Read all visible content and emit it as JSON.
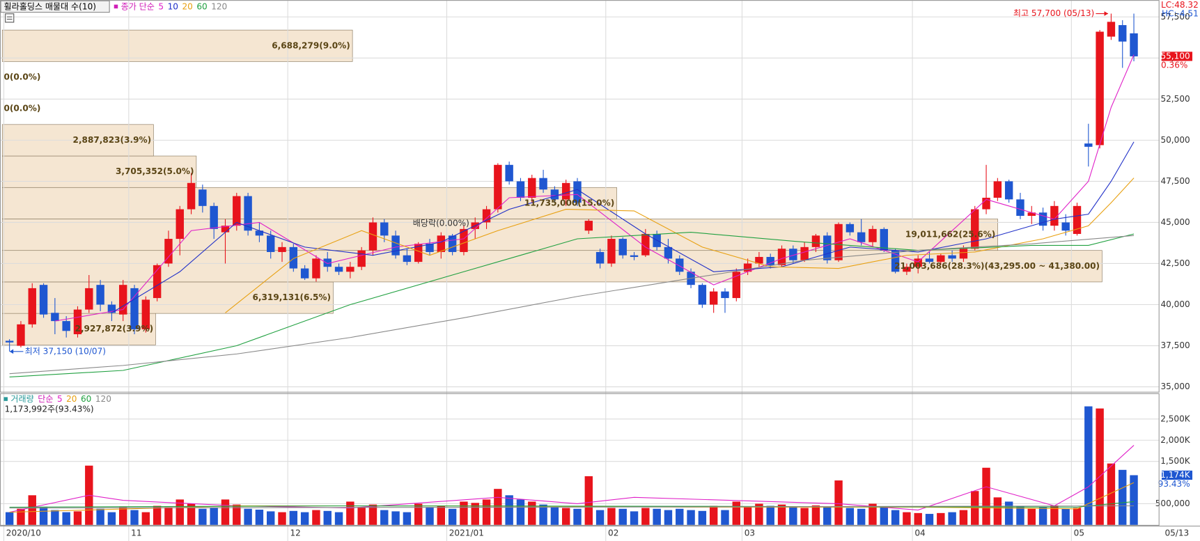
{
  "chart_data": [
    {
      "type": "candlestick",
      "title": "휠라홀딩스 매물대 수(10)",
      "ma_label": "종가 단순",
      "lc_label": "LC:48.32",
      "hc_label": "HC:-4.51",
      "high_label": "최고 57,700 (05/13)",
      "low_label": "최저 37,150 (10/07)",
      "dividend_label": "배당락(0.00%)",
      "last_price_label": "55,100",
      "change_label": "0.36%",
      "x_end_label": "05/13",
      "up_color": "#e8141c",
      "down_color": "#1f57d1",
      "categories": [
        "2020/10",
        null,
        null,
        null,
        null,
        null,
        null,
        null,
        null,
        null,
        null,
        "11",
        null,
        null,
        null,
        null,
        null,
        null,
        null,
        null,
        null,
        null,
        null,
        null,
        null,
        "12",
        null,
        null,
        null,
        null,
        null,
        null,
        null,
        null,
        null,
        null,
        null,
        null,
        null,
        "2021/01",
        null,
        null,
        null,
        null,
        null,
        null,
        null,
        null,
        null,
        null,
        null,
        null,
        null,
        "02",
        null,
        null,
        null,
        null,
        null,
        null,
        null,
        null,
        null,
        null,
        null,
        "03",
        null,
        null,
        null,
        null,
        null,
        null,
        null,
        null,
        null,
        null,
        null,
        null,
        null,
        null,
        "04",
        null,
        null,
        null,
        null,
        null,
        null,
        null,
        null,
        null,
        null,
        null,
        null,
        null,
        "05",
        null,
        null,
        null,
        null,
        null
      ],
      "open": [
        37800,
        37500,
        38800,
        41200,
        39500,
        39000,
        38200,
        39700,
        41200,
        40000,
        39400,
        41000,
        38500,
        40400,
        42500,
        44000,
        45800,
        47000,
        46000,
        44400,
        44800,
        46600,
        44500,
        44200,
        43200,
        43500,
        42200,
        41600,
        42800,
        42300,
        42000,
        42300,
        43300,
        45000,
        44200,
        43000,
        42600,
        43700,
        43200,
        44200,
        43200,
        44600,
        45000,
        45800,
        48500,
        47500,
        46500,
        47700,
        47000,
        46400,
        47500,
        44500,
        43200,
        42500,
        44000,
        43000,
        43000,
        44300,
        43500,
        42800,
        42000,
        41200,
        40000,
        40800,
        40400,
        42000,
        42500,
        42900,
        42400,
        43400,
        42700,
        43500,
        44200,
        42700,
        44900,
        44400,
        43800,
        44600,
        43300,
        42000,
        42300,
        42800,
        42600,
        43000,
        42800,
        43400,
        45800,
        46500,
        47500,
        46400,
        45400,
        45600,
        44800,
        45000,
        44300,
        49800,
        49700,
        56300,
        57000,
        56500
      ],
      "high": [
        37900,
        39000,
        41300,
        41300,
        40400,
        39300,
        39900,
        41800,
        41500,
        40200,
        41500,
        41200,
        40500,
        42500,
        44500,
        46000,
        48000,
        47300,
        46200,
        45200,
        46800,
        46800,
        45000,
        44500,
        43800,
        43700,
        42400,
        43000,
        43200,
        42500,
        42600,
        43500,
        45300,
        45200,
        44500,
        43400,
        43800,
        44000,
        44400,
        44300,
        44800,
        45300,
        46000,
        48600,
        48700,
        47700,
        47900,
        48200,
        47200,
        47600,
        47700,
        45200,
        43400,
        44200,
        44100,
        43200,
        44600,
        44500,
        44000,
        43000,
        42200,
        41300,
        41000,
        41000,
        42200,
        42800,
        43200,
        43100,
        43600,
        43600,
        43800,
        44300,
        44400,
        45000,
        45000,
        45200,
        44800,
        44700,
        43400,
        42500,
        43000,
        43200,
        43100,
        43300,
        43600,
        46000,
        48500,
        47700,
        47600,
        46800,
        46000,
        45900,
        46300,
        45500,
        46200,
        51000,
        56700,
        57700,
        57300,
        57700
      ],
      "low": [
        37150,
        37400,
        38600,
        39200,
        38200,
        38000,
        38000,
        39500,
        39600,
        39000,
        39000,
        38200,
        38300,
        40200,
        42300,
        43000,
        45500,
        45600,
        44000,
        42500,
        44500,
        44200,
        43800,
        42800,
        42600,
        42000,
        41500,
        41400,
        42000,
        41800,
        41600,
        42100,
        43000,
        43800,
        42800,
        42400,
        42500,
        43000,
        42800,
        43000,
        43000,
        44000,
        44600,
        45600,
        47300,
        46300,
        46200,
        46800,
        46200,
        46000,
        46000,
        44300,
        42200,
        42300,
        42800,
        42700,
        42900,
        43300,
        42500,
        41800,
        41000,
        39800,
        39500,
        39500,
        40200,
        41800,
        42300,
        42200,
        42300,
        42500,
        42600,
        43200,
        42500,
        42600,
        44200,
        43600,
        43500,
        43200,
        41900,
        41800,
        41900,
        42500,
        42400,
        42600,
        42600,
        43300,
        45500,
        46300,
        46200,
        45200,
        44900,
        44500,
        44500,
        44200,
        44200,
        48400,
        49500,
        56100,
        54400,
        54800
      ],
      "close": [
        37700,
        38800,
        41000,
        39400,
        39000,
        38400,
        39700,
        41000,
        40000,
        39500,
        41200,
        38500,
        40300,
        42400,
        44000,
        45800,
        47400,
        46000,
        44600,
        44800,
        46600,
        44500,
        44200,
        43200,
        43500,
        42200,
        41600,
        42800,
        42300,
        42000,
        42300,
        43300,
        45000,
        44200,
        43000,
        42600,
        43700,
        43200,
        44200,
        43200,
        44600,
        45000,
        45800,
        48500,
        47500,
        46500,
        47700,
        47000,
        46400,
        47400,
        46200,
        45100,
        42500,
        44000,
        43000,
        42900,
        44300,
        43500,
        42800,
        42000,
        41200,
        40000,
        40800,
        40400,
        42000,
        42500,
        42900,
        42400,
        43400,
        42700,
        43500,
        44200,
        42700,
        44900,
        44400,
        43800,
        44600,
        43300,
        42000,
        42300,
        42800,
        42600,
        43000,
        42800,
        43400,
        45800,
        46500,
        47500,
        46400,
        45400,
        45600,
        44800,
        46000,
        44500,
        46000,
        49600,
        56600,
        57200,
        56000,
        55100
      ],
      "ylim": [
        34700,
        58525
      ],
      "yticks": [
        {
          "value": 35000,
          "label": "35,000"
        },
        {
          "value": 37500,
          "label": "37,500"
        },
        {
          "value": 40000,
          "label": "40,000"
        },
        {
          "value": 42500,
          "label": "42,500"
        },
        {
          "value": 45000,
          "label": "45,000"
        },
        {
          "value": 47500,
          "label": "47,500"
        },
        {
          "value": 50000,
          "label": "50,000"
        },
        {
          "value": 52500,
          "label": "52,500"
        },
        {
          "value": 55000,
          "label": "55,000"
        },
        {
          "value": 57500,
          "label": "57,500"
        }
      ],
      "grid": true,
      "series": [
        {
          "name": "5",
          "color": "#e020c8",
          "x": [
            4,
            10,
            16,
            22,
            28,
            34,
            40,
            44,
            50,
            56,
            62,
            68,
            74,
            80,
            86,
            92,
            95,
            97,
            99
          ],
          "values": [
            39000,
            39700,
            44500,
            45000,
            42500,
            43500,
            44000,
            46500,
            46700,
            43500,
            41200,
            42800,
            44000,
            42600,
            46400,
            45200,
            47500,
            52000,
            55200
          ]
        },
        {
          "name": "10",
          "color": "#2030c8",
          "x": [
            9,
            15,
            20,
            26,
            32,
            38,
            44,
            50,
            56,
            62,
            68,
            74,
            80,
            86,
            92,
            95,
            97,
            99
          ],
          "values": [
            39500,
            42000,
            45000,
            43500,
            43000,
            43800,
            45800,
            47000,
            44300,
            42000,
            42300,
            43500,
            43200,
            44000,
            45200,
            45500,
            47500,
            49900
          ]
        },
        {
          "name": "20",
          "color": "#e8a010",
          "x": [
            19,
            25,
            31,
            37,
            43,
            49,
            55,
            61,
            67,
            73,
            79,
            85,
            91,
            95,
            97,
            99
          ],
          "values": [
            39500,
            42800,
            44500,
            43000,
            44500,
            45800,
            45700,
            43500,
            42300,
            42200,
            43000,
            43200,
            44000,
            44800,
            46200,
            47700
          ]
        },
        {
          "name": "60",
          "color": "#20a040",
          "x": [
            0,
            10,
            20,
            30,
            40,
            50,
            60,
            70,
            80,
            90,
            95,
            99
          ],
          "values": [
            35600,
            36000,
            37500,
            40000,
            42000,
            44000,
            44400,
            43800,
            43300,
            43600,
            43600,
            44300
          ]
        },
        {
          "name": "120",
          "color": "#888888",
          "x": [
            0,
            10,
            20,
            30,
            40,
            50,
            60,
            70,
            80,
            90,
            99
          ],
          "values": [
            35800,
            36300,
            37000,
            38000,
            39200,
            40500,
            41600,
            42700,
            43300,
            43700,
            44200
          ]
        }
      ],
      "volume_profile": {
        "color": "#f5e6d2",
        "edges": [
          37550,
          39465,
          41380,
          43295,
          45210,
          47125,
          49040,
          50955,
          52870,
          54785,
          56700
        ],
        "volumes": [
          2927872,
          6319131,
          21003686,
          19011662,
          11735000,
          3705352,
          2887823,
          0,
          0,
          6688279
        ],
        "value_labels": [
          "2,927,872(3.9%)",
          "6,319,131(6.5%)",
          "21,003,686(28.3%)(43,295.00 ~ 41,380.00)",
          "19,011,662(25.6%)",
          "11,735,000(15.0%)",
          "3,705,352(5.0%)",
          "2,887,823(3.9%)",
          "0(0.0%)",
          "0(0.0%)",
          "6,688,279(9.0%)"
        ]
      }
    },
    {
      "type": "bar",
      "title": "거래량",
      "ma_label": "단순",
      "info_label": "1,173,992주(93.43%)",
      "last_label": "1,174K",
      "ratio_label": "93.43%",
      "values": [
        300000,
        380000,
        700000,
        420000,
        350000,
        300000,
        320000,
        1400000,
        380000,
        300000,
        420000,
        350000,
        300000,
        450000,
        420000,
        600000,
        500000,
        380000,
        400000,
        600000,
        480000,
        380000,
        360000,
        320000,
        300000,
        330000,
        300000,
        350000,
        330000,
        300000,
        550000,
        420000,
        480000,
        350000,
        320000,
        300000,
        500000,
        420000,
        450000,
        380000,
        550000,
        520000,
        600000,
        850000,
        700000,
        600000,
        550000,
        480000,
        420000,
        400000,
        380000,
        1150000,
        350000,
        400000,
        380000,
        320000,
        400000,
        380000,
        350000,
        380000,
        350000,
        330000,
        450000,
        350000,
        550000,
        420000,
        500000,
        450000,
        480000,
        430000,
        400000,
        460000,
        420000,
        1050000,
        400000,
        380000,
        500000,
        420000,
        350000,
        300000,
        280000,
        260000,
        280000,
        300000,
        350000,
        800000,
        1350000,
        650000,
        550000,
        450000,
        380000,
        420000,
        460000,
        380000,
        400000,
        2800000,
        2750000,
        1450000,
        1300000,
        1173992
      ],
      "ylim": [
        0,
        3000000
      ],
      "yticks": [
        {
          "value": 500000,
          "label": "500,000"
        },
        {
          "value": 1500000,
          "label": "1,500K"
        },
        {
          "value": 2000000,
          "label": "2,000K"
        },
        {
          "value": 2500000,
          "label": "2,500K"
        }
      ],
      "series": [
        {
          "name": "5",
          "color": "#e020c8",
          "x": [
            0,
            7,
            10,
            20,
            30,
            43,
            50,
            55,
            73,
            80,
            86,
            92,
            95,
            99
          ],
          "values": [
            300000,
            700000,
            580000,
            450000,
            400000,
            650000,
            500000,
            650000,
            500000,
            350000,
            900000,
            450000,
            900000,
            1880000
          ]
        },
        {
          "name": "20",
          "color": "#e8a010",
          "x": [
            0,
            20,
            40,
            60,
            80,
            94,
            99
          ],
          "values": [
            300000,
            450000,
            450000,
            420000,
            420000,
            380000,
            1000000
          ]
        },
        {
          "name": "60",
          "color": "#20a040",
          "x": [
            0,
            30,
            60,
            94,
            99
          ],
          "values": [
            420000,
            450000,
            440000,
            420000,
            550000
          ]
        },
        {
          "name": "120",
          "color": "#888888",
          "x": [
            0,
            50,
            99
          ],
          "values": [
            400000,
            420000,
            450000
          ]
        }
      ]
    }
  ]
}
